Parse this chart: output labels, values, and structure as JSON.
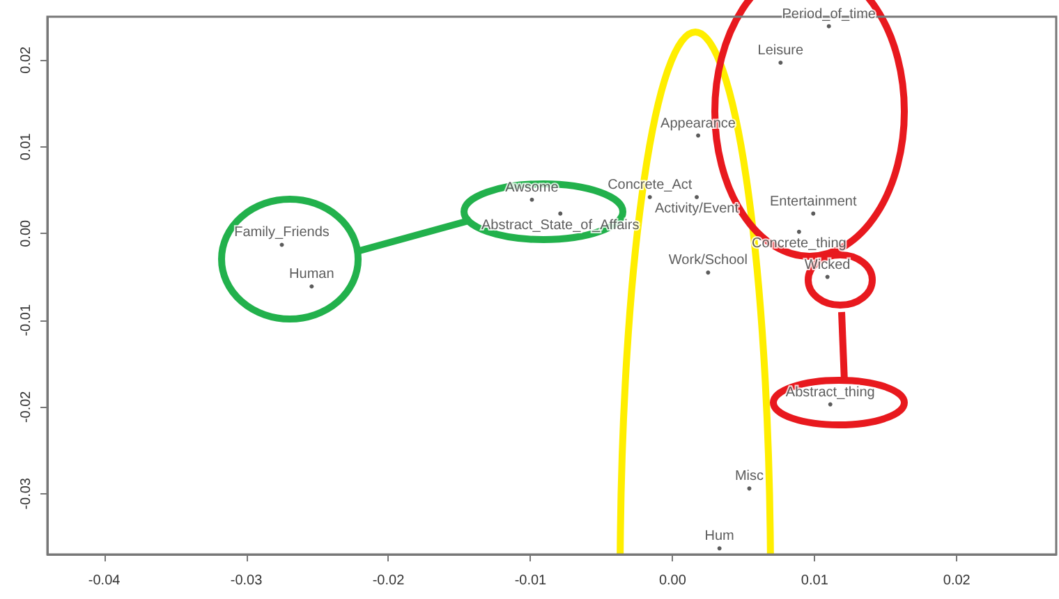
{
  "chart_data": {
    "type": "scatter",
    "marker": "circle",
    "xlim": [
      -0.044,
      0.027
    ],
    "ylim": [
      -0.037,
      0.025
    ],
    "xticks": [
      -0.04,
      -0.03,
      -0.02,
      -0.01,
      {
        "value": 0,
        "label": "0.00"
      },
      0.01,
      0.02
    ],
    "yticks": [
      -0.03,
      -0.02,
      -0.01,
      {
        "value": 0,
        "label": "0.00"
      },
      0.01,
      0.02
    ],
    "series": [
      {
        "name": "Family_Friends",
        "color": "#333333",
        "x": [
          -0.0275
        ],
        "values": [
          -0.0013
        ]
      },
      {
        "name": "Human",
        "color": "#333333",
        "x": [
          -0.0254
        ],
        "values": [
          -0.0061
        ]
      },
      {
        "name": "Awsome",
        "color": "#333333",
        "x": [
          -0.0099
        ],
        "values": [
          0.0039
        ]
      },
      {
        "name": "Abstract_State_of_Affairs",
        "color": "#333333",
        "x": [
          -0.0079
        ],
        "values": [
          0.0023
        ]
      },
      {
        "name": "Concrete_Act",
        "color": "#333333",
        "x": [
          -0.0016
        ],
        "values": [
          0.0042
        ]
      },
      {
        "name": "Activity/Event",
        "color": "#333333",
        "x": [
          0.0017
        ],
        "values": [
          0.0042
        ]
      },
      {
        "name": "Appearance",
        "color": "#333333",
        "x": [
          0.0018
        ],
        "values": [
          0.0113
        ]
      },
      {
        "name": "Period_of_time",
        "color": "#333333",
        "x": [
          0.011
        ],
        "values": [
          0.0239
        ]
      },
      {
        "name": "Leisure",
        "color": "#333333",
        "x": [
          0.0076
        ],
        "values": [
          0.0197
        ]
      },
      {
        "name": "Entertainment",
        "color": "#333333",
        "x": [
          0.0099
        ],
        "values": [
          0.0023
        ]
      },
      {
        "name": "Concrete_thing",
        "color": "#333333",
        "x": [
          0.0089
        ],
        "values": [
          0.0002
        ]
      },
      {
        "name": "Work/School",
        "color": "#333333",
        "x": [
          0.0025
        ],
        "values": [
          -0.0045
        ]
      },
      {
        "name": "Wicked",
        "color": "#333333",
        "x": [
          0.0109
        ],
        "values": [
          -0.005
        ]
      },
      {
        "name": "Abstract_thing",
        "color": "#333333",
        "x": [
          0.0111
        ],
        "values": [
          -0.0197
        ]
      },
      {
        "name": "Misc",
        "color": "#333333",
        "x": [
          0.0054
        ],
        "values": [
          -0.0294
        ]
      },
      {
        "name": "Hum",
        "color": "#333333",
        "x": [
          0.0033
        ],
        "values": [
          -0.0363
        ]
      }
    ]
  }
}
